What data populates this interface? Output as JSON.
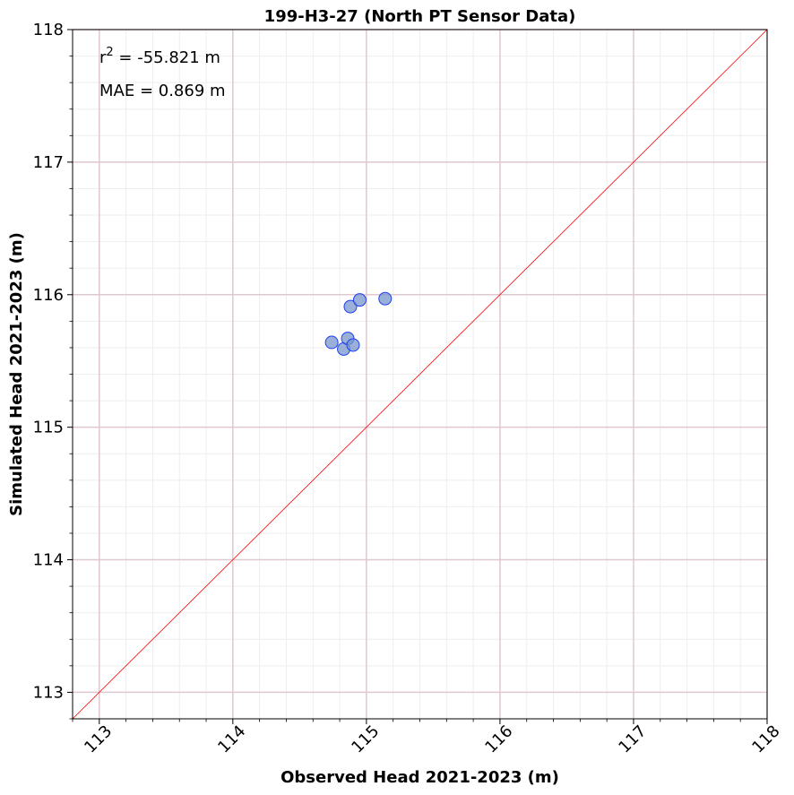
{
  "chart_data": {
    "type": "scatter",
    "title": "199-H3-27 (North PT Sensor Data)",
    "xlabel": "Observed Head 2021-2023 (m)",
    "ylabel": "Simulated Head 2021-2023 (m)",
    "xlim": [
      112.8,
      118
    ],
    "ylim": [
      112.8,
      118
    ],
    "x_ticks": [
      "113",
      "114",
      "115",
      "116",
      "117",
      "118"
    ],
    "y_ticks": [
      "113",
      "114",
      "115",
      "116",
      "117",
      "118"
    ],
    "grid": true,
    "reference_line": "1:1",
    "annotations": {
      "r2_prefix": "r",
      "r2_sup": "2",
      "r2_value": " = -55.821 m",
      "mae": "MAE = 0.869 m"
    },
    "series": [
      {
        "x": [
          114.74,
          114.83,
          114.86,
          114.88,
          114.9,
          114.95,
          115.14
        ],
        "y": [
          115.64,
          115.59,
          115.67,
          115.91,
          115.62,
          115.96,
          115.97
        ]
      }
    ],
    "colors": {
      "marker_fill": "#7896cc",
      "marker_edge": "#1f3ff0",
      "reference_line": "#ff0000",
      "major_grid": "#e0c8d0",
      "minor_grid": "#eeeeee"
    }
  }
}
